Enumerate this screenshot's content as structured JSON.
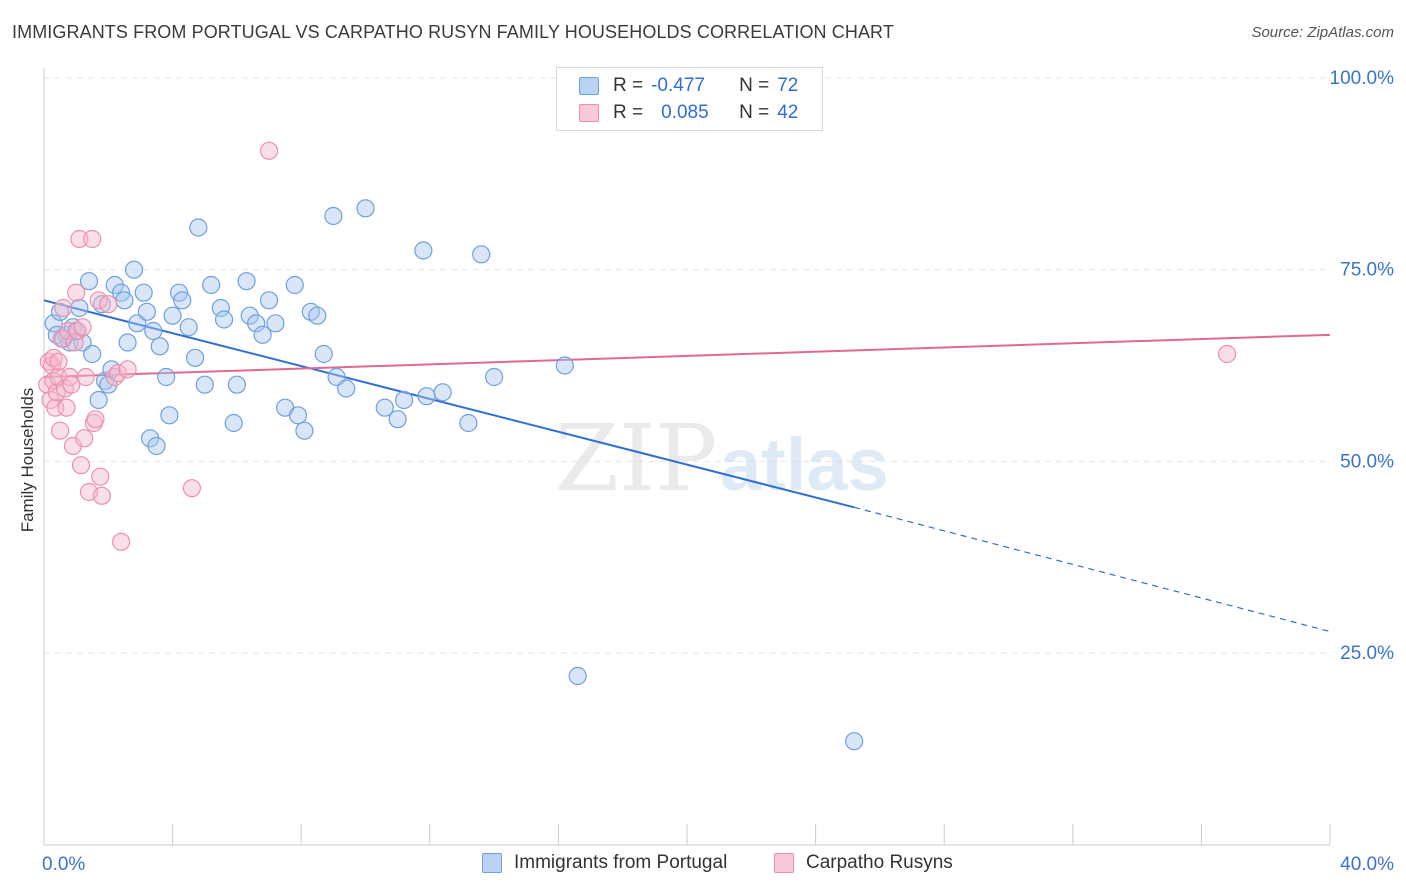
{
  "header": {
    "title": "IMMIGRANTS FROM PORTUGAL VS CARPATHO RUSYN FAMILY HOUSEHOLDS CORRELATION CHART",
    "source": "Source: ZipAtlas.com"
  },
  "watermark": {
    "zip": "ZIP",
    "atlas": "atlas"
  },
  "legend_top": {
    "rows": [
      {
        "r_label": "R =",
        "r_value": "-0.477",
        "n_label": "N =",
        "n_value": "72"
      },
      {
        "r_label": "R =",
        "r_value": "0.085",
        "n_label": "N =",
        "n_value": "42"
      }
    ]
  },
  "legend_bottom": {
    "items": [
      "Immigrants from Portugal",
      "Carpatho Rusyns"
    ]
  },
  "colors": {
    "blue_fill": "#a9c8f0",
    "blue_stroke": "#6e9fe0",
    "blue_line": "#2f6fd1",
    "pink_fill": "#f7b8cc",
    "pink_stroke": "#ec8fae",
    "pink_line": "#e06a94",
    "tick_label": "#3a74c8",
    "grid": "#e6e6e6"
  },
  "chart_data": {
    "type": "scatter",
    "title": "IMMIGRANTS FROM PORTUGAL VS CARPATHO RUSYN FAMILY HOUSEHOLDS CORRELATION CHART",
    "xlabel": "",
    "ylabel": "Family Households",
    "xlim": [
      0,
      40
    ],
    "ylim": [
      0,
      102
    ],
    "x_tick_labels": [
      "0.0%",
      "40.0%"
    ],
    "x_tick_label_values": [
      0,
      40
    ],
    "x_minor_ticks": [
      0,
      4,
      8,
      12,
      16,
      20,
      24,
      28,
      32,
      36,
      40
    ],
    "y_ticks": [
      25,
      50,
      75,
      100
    ],
    "y_tick_labels": [
      "25.0%",
      "50.0%",
      "75.0%",
      "100.0%"
    ],
    "grid": true,
    "legend_position": "top-center",
    "series": [
      {
        "name": "Immigrants from Portugal",
        "color": "blue",
        "points": [
          [
            0.3,
            68.0
          ],
          [
            0.4,
            66.5
          ],
          [
            0.5,
            69.5
          ],
          [
            0.7,
            66.5
          ],
          [
            0.8,
            65.5
          ],
          [
            0.9,
            67.5
          ],
          [
            1.1,
            70.0
          ],
          [
            1.2,
            65.5
          ],
          [
            1.4,
            73.5
          ],
          [
            1.5,
            64.0
          ],
          [
            1.7,
            58.0
          ],
          [
            1.8,
            70.5
          ],
          [
            1.9,
            60.5
          ],
          [
            2.0,
            60.0
          ],
          [
            2.1,
            62.0
          ],
          [
            2.2,
            73.0
          ],
          [
            2.4,
            72.0
          ],
          [
            2.5,
            71.0
          ],
          [
            2.6,
            65.5
          ],
          [
            2.8,
            75.0
          ],
          [
            2.9,
            68.0
          ],
          [
            3.1,
            72.0
          ],
          [
            3.2,
            69.5
          ],
          [
            3.3,
            53.0
          ],
          [
            3.4,
            67.0
          ],
          [
            3.5,
            52.0
          ],
          [
            3.6,
            65.0
          ],
          [
            3.8,
            61.0
          ],
          [
            3.9,
            56.0
          ],
          [
            4.0,
            69.0
          ],
          [
            4.2,
            72.0
          ],
          [
            4.3,
            71.0
          ],
          [
            4.5,
            67.5
          ],
          [
            4.7,
            63.5
          ],
          [
            4.8,
            80.5
          ],
          [
            5.0,
            60.0
          ],
          [
            5.2,
            73.0
          ],
          [
            5.5,
            70.0
          ],
          [
            5.6,
            68.5
          ],
          [
            5.9,
            55.0
          ],
          [
            6.0,
            60.0
          ],
          [
            6.3,
            73.5
          ],
          [
            6.4,
            69.0
          ],
          [
            6.6,
            68.0
          ],
          [
            6.8,
            66.5
          ],
          [
            7.0,
            71.0
          ],
          [
            7.2,
            68.0
          ],
          [
            7.5,
            57.0
          ],
          [
            7.8,
            73.0
          ],
          [
            7.9,
            56.0
          ],
          [
            8.1,
            54.0
          ],
          [
            8.3,
            69.5
          ],
          [
            8.5,
            69.0
          ],
          [
            8.7,
            64.0
          ],
          [
            9.0,
            82.0
          ],
          [
            9.1,
            61.0
          ],
          [
            9.4,
            59.5
          ],
          [
            10.0,
            83.0
          ],
          [
            10.6,
            57.0
          ],
          [
            11.0,
            55.5
          ],
          [
            11.2,
            58.0
          ],
          [
            11.8,
            77.5
          ],
          [
            11.9,
            58.5
          ],
          [
            12.4,
            59.0
          ],
          [
            13.2,
            55.0
          ],
          [
            13.6,
            77.0
          ],
          [
            14.0,
            61.0
          ],
          [
            16.2,
            62.5
          ],
          [
            16.6,
            22.0
          ],
          [
            25.2,
            13.5
          ],
          [
            0.6,
            66.0
          ],
          [
            1.0,
            67.0
          ]
        ],
        "trend": {
          "x0": 0,
          "y0": 71.0,
          "x1": 25.2,
          "y1": 44.0,
          "dashed_x1": 40,
          "dashed_y1": 27.8
        }
      },
      {
        "name": "Carpatho Rusyns",
        "color": "pink",
        "points": [
          [
            0.1,
            60.0
          ],
          [
            0.15,
            63.0
          ],
          [
            0.2,
            58.0
          ],
          [
            0.25,
            62.5
          ],
          [
            0.3,
            60.5
          ],
          [
            0.35,
            57.0
          ],
          [
            0.4,
            59.0
          ],
          [
            0.45,
            61.0
          ],
          [
            0.5,
            54.0
          ],
          [
            0.55,
            66.0
          ],
          [
            0.6,
            70.0
          ],
          [
            0.65,
            59.5
          ],
          [
            0.7,
            57.0
          ],
          [
            0.75,
            67.0
          ],
          [
            0.8,
            61.0
          ],
          [
            0.85,
            60.0
          ],
          [
            0.9,
            52.0
          ],
          [
            0.95,
            65.5
          ],
          [
            1.0,
            72.0
          ],
          [
            1.05,
            67.0
          ],
          [
            1.1,
            79.0
          ],
          [
            1.15,
            49.5
          ],
          [
            1.2,
            67.5
          ],
          [
            1.25,
            53.0
          ],
          [
            1.3,
            61.0
          ],
          [
            1.4,
            46.0
          ],
          [
            1.5,
            79.0
          ],
          [
            1.55,
            55.0
          ],
          [
            1.6,
            55.5
          ],
          [
            1.7,
            71.0
          ],
          [
            1.75,
            48.0
          ],
          [
            1.8,
            45.5
          ],
          [
            2.0,
            70.5
          ],
          [
            2.2,
            61.0
          ],
          [
            2.3,
            61.5
          ],
          [
            2.6,
            62.0
          ],
          [
            2.4,
            39.5
          ],
          [
            4.6,
            46.5
          ],
          [
            7.0,
            90.5
          ],
          [
            36.8,
            64.0
          ],
          [
            0.3,
            63.5
          ],
          [
            0.45,
            63.0
          ]
        ],
        "trend": {
          "x0": 0,
          "y0": 61.0,
          "x1": 40,
          "y1": 66.5
        }
      }
    ]
  }
}
